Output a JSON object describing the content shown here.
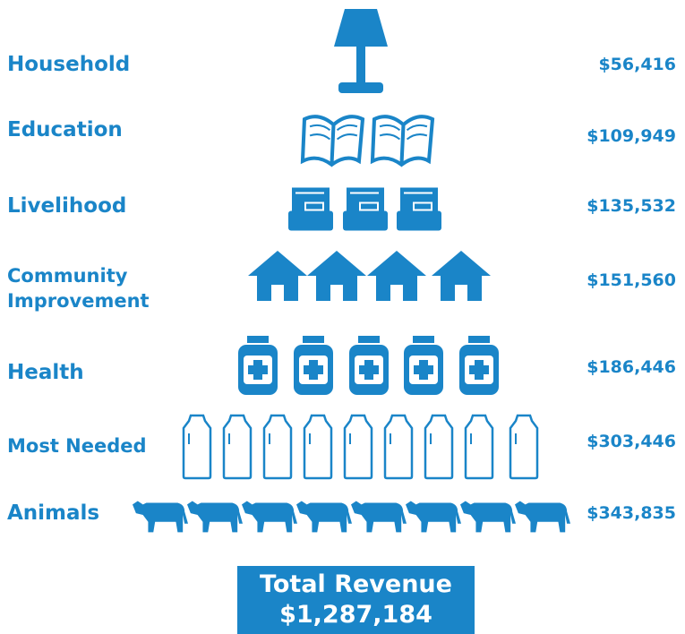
{
  "rows": [
    {
      "label": "Household",
      "amount": "$56,416"
    },
    {
      "label": "Education",
      "amount": "$109,949"
    },
    {
      "label": "Livelihood",
      "amount": "$135,532"
    },
    {
      "label": "Community Improvement",
      "amount": "$151,560"
    },
    {
      "label": "Health",
      "amount": "$186,446"
    },
    {
      "label": "Most Needed",
      "amount": "$303,446"
    },
    {
      "label": "Animals",
      "amount": "$343,835"
    }
  ],
  "total": {
    "label": "Total Revenue",
    "amount": "$1,287,184"
  }
}
